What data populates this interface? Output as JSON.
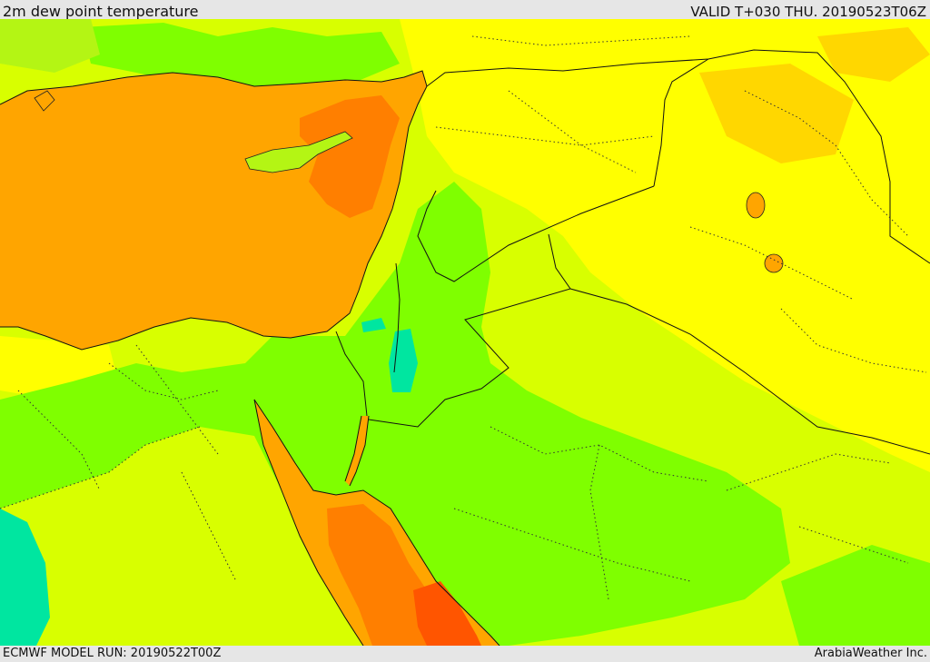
{
  "header": {
    "title": "2m dew point temperature",
    "valid": "VALID T+030 THU. 20190523T06Z"
  },
  "footer": {
    "model_run": "ECMWF MODEL RUN: 20190522T00Z",
    "credit": "ArabiaWeather Inc."
  },
  "palette": {
    "cyan": "#00e6a0",
    "green": "#7fff00",
    "light_green": "#b4f514",
    "lime": "#d8ff00",
    "yellow": "#ffff00",
    "gold": "#ffd700",
    "orange": "#ffa500",
    "dark_orange": "#ff7f00",
    "red_orange": "#ff5500"
  }
}
